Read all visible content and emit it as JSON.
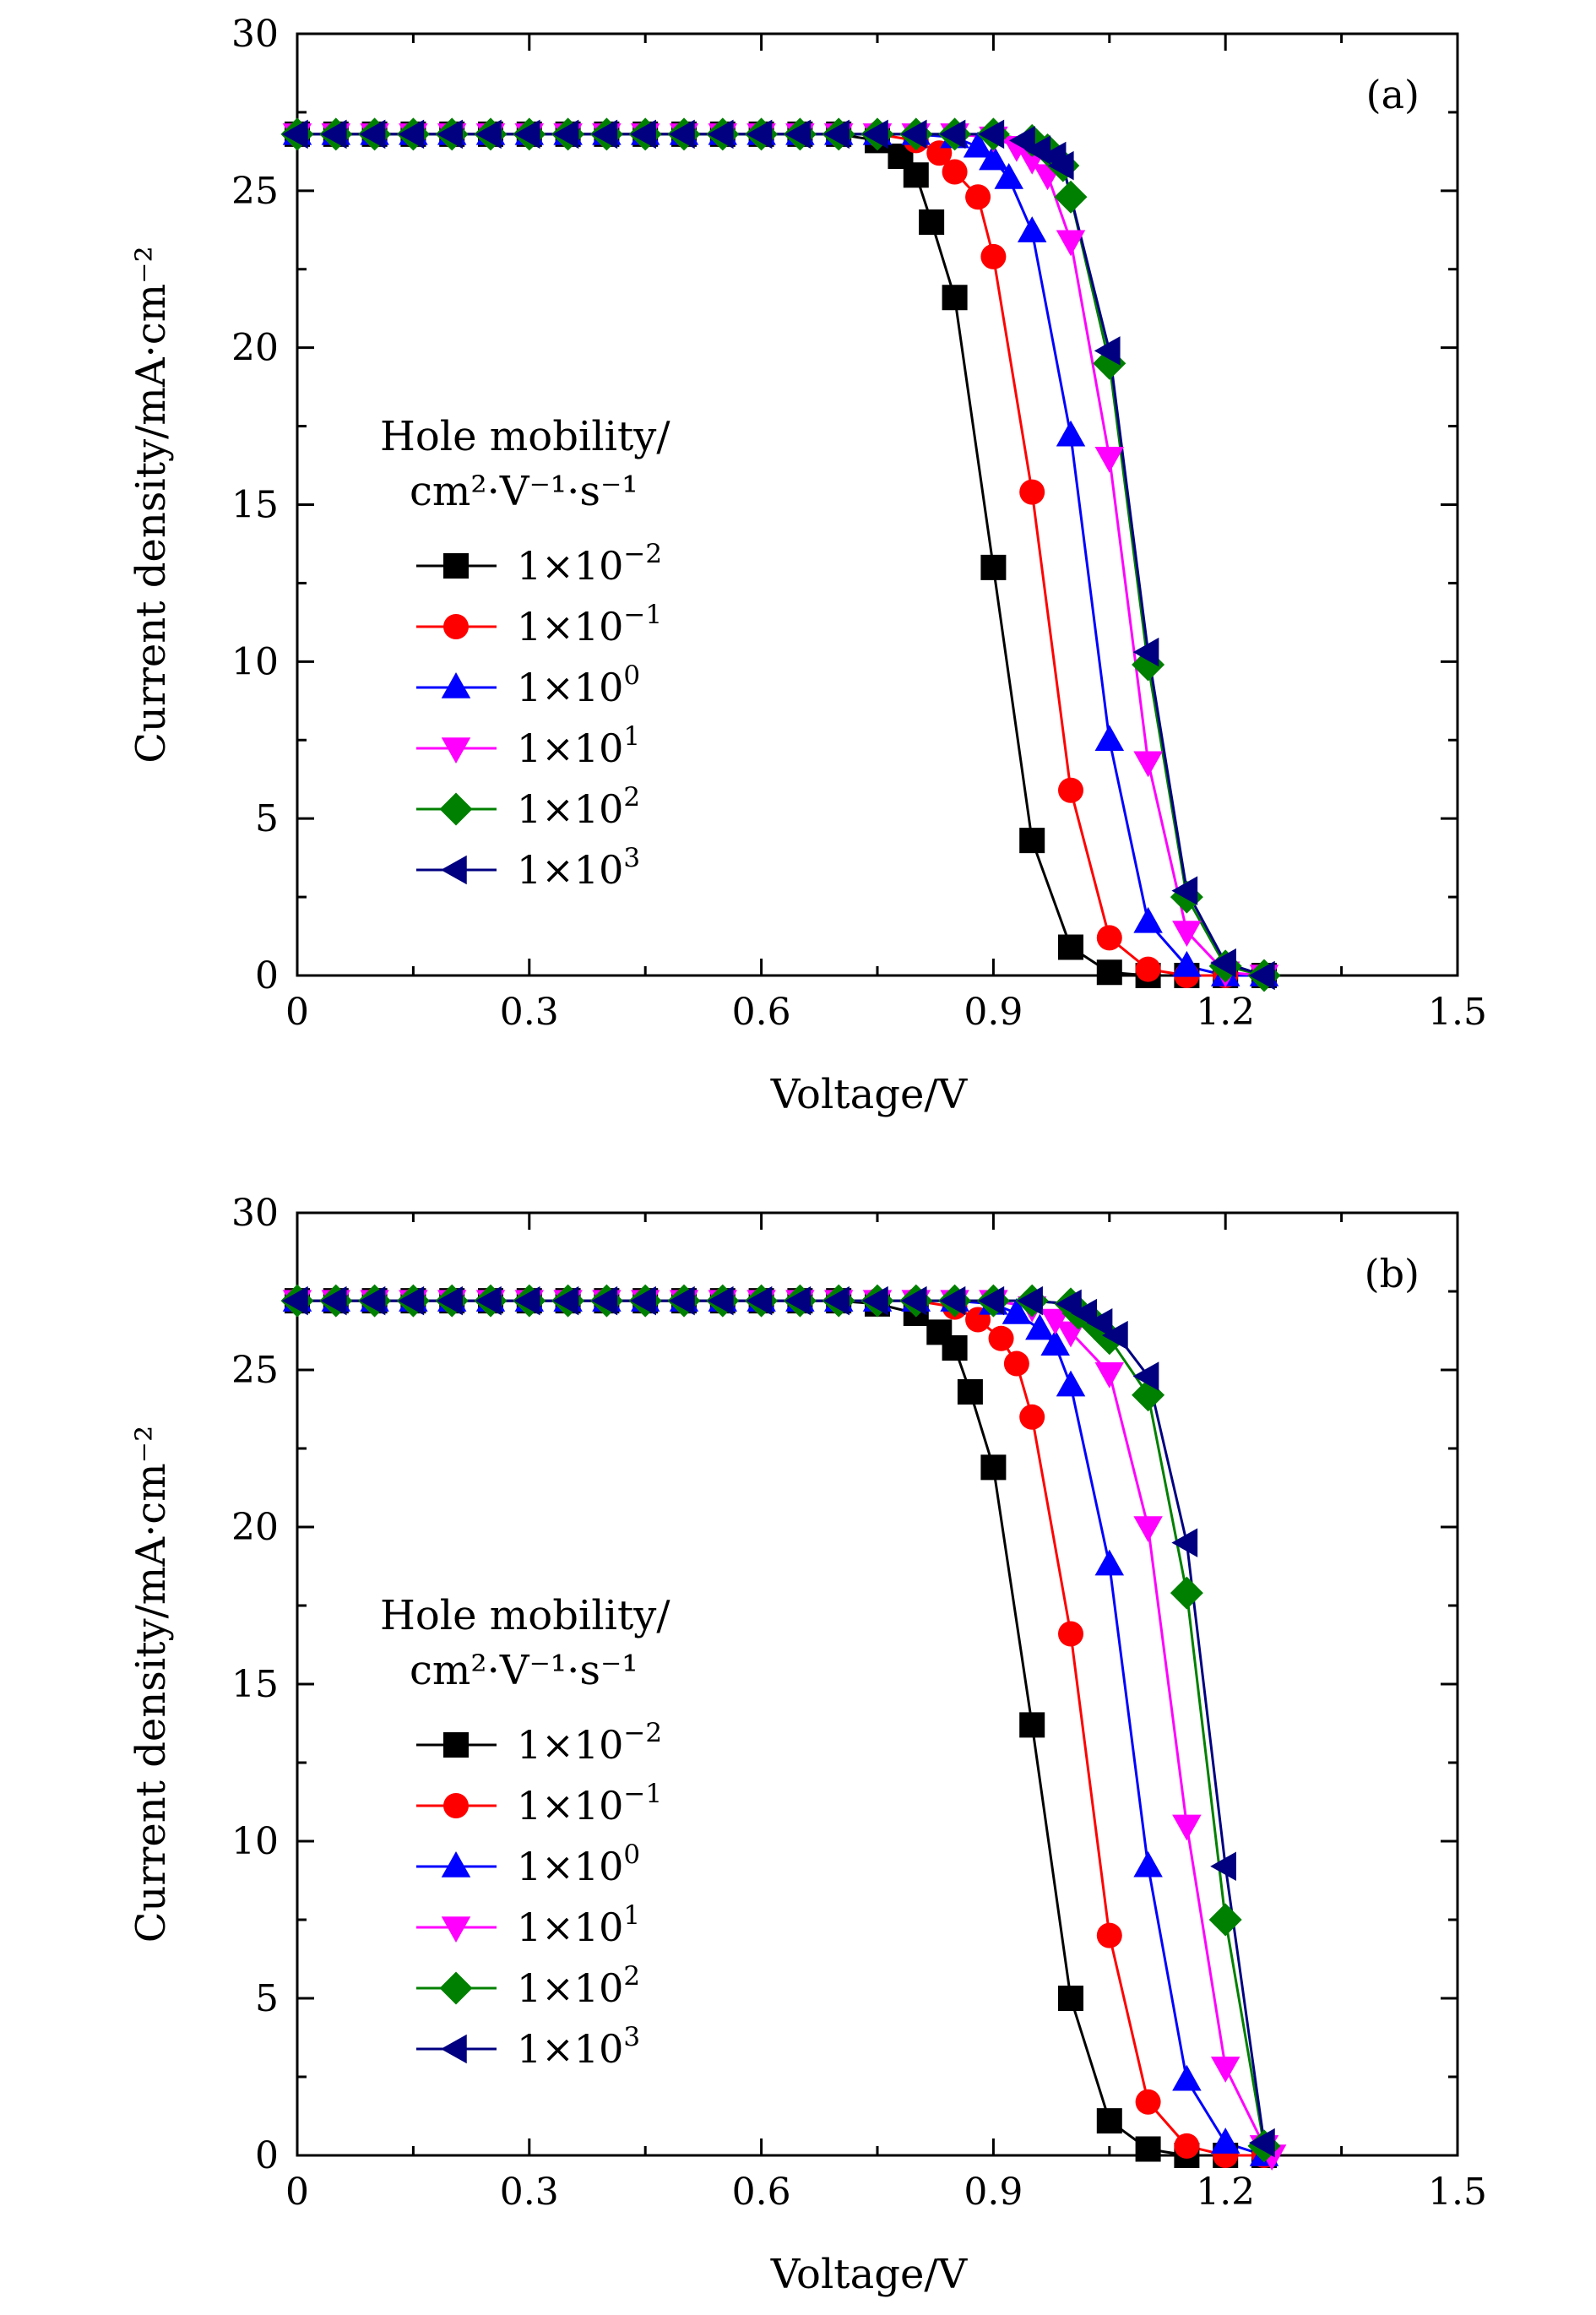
{
  "chart_data": [
    {
      "type": "line",
      "panel_label": "(a)",
      "xlabel": "Voltage/V",
      "ylabel": "Current density/mA·cm⁻²",
      "xlim": [
        0,
        1.5
      ],
      "ylim": [
        0,
        30
      ],
      "x_ticks": [
        0,
        0.3,
        0.6,
        0.9,
        1.2,
        1.5
      ],
      "x_tick_labels": [
        "0",
        "0.3",
        "0.6",
        "0.9",
        "1.2",
        "1.5"
      ],
      "y_ticks": [
        0,
        5,
        10,
        15,
        20,
        25,
        30
      ],
      "y_tick_labels": [
        "0",
        "5",
        "10",
        "15",
        "20",
        "25",
        "30"
      ],
      "legend": {
        "title_line1": "Hole mobility/",
        "title_line2": "cm²·V⁻¹·s⁻¹",
        "placement": "center-left"
      },
      "series": [
        {
          "name": "1×10⁻²",
          "mantissa": "1×10",
          "exponent": "−2",
          "color": "#000000",
          "marker": "square",
          "x": [
            0,
            0.05,
            0.1,
            0.15,
            0.2,
            0.25,
            0.3,
            0.35,
            0.4,
            0.45,
            0.5,
            0.55,
            0.6,
            0.65,
            0.7,
            0.75,
            0.78,
            0.8,
            0.82,
            0.85,
            0.9,
            0.95,
            1.0,
            1.05,
            1.1,
            1.15,
            1.2,
            1.25
          ],
          "y": [
            26.8,
            26.8,
            26.8,
            26.8,
            26.8,
            26.8,
            26.8,
            26.8,
            26.8,
            26.8,
            26.8,
            26.8,
            26.8,
            26.8,
            26.8,
            26.6,
            26.1,
            25.5,
            24.0,
            21.6,
            13.0,
            4.3,
            0.9,
            0.1,
            0.0,
            0.0,
            0.0,
            0.0
          ]
        },
        {
          "name": "1×10⁻¹",
          "mantissa": "1×10",
          "exponent": "−1",
          "color": "#ff0000",
          "marker": "circle",
          "x": [
            0,
            0.05,
            0.1,
            0.15,
            0.2,
            0.25,
            0.3,
            0.35,
            0.4,
            0.45,
            0.5,
            0.55,
            0.6,
            0.65,
            0.7,
            0.75,
            0.8,
            0.83,
            0.85,
            0.88,
            0.9,
            0.95,
            1.0,
            1.05,
            1.1,
            1.15,
            1.2,
            1.25
          ],
          "y": [
            26.8,
            26.8,
            26.8,
            26.8,
            26.8,
            26.8,
            26.8,
            26.8,
            26.8,
            26.8,
            26.8,
            26.8,
            26.8,
            26.8,
            26.8,
            26.8,
            26.6,
            26.2,
            25.6,
            24.8,
            22.9,
            15.4,
            5.9,
            1.2,
            0.2,
            0.0,
            0.0,
            0.0
          ]
        },
        {
          "name": "1×10⁰",
          "mantissa": "1×10",
          "exponent": "0",
          "color": "#0000ff",
          "marker": "triangle-up",
          "x": [
            0,
            0.05,
            0.1,
            0.15,
            0.2,
            0.25,
            0.3,
            0.35,
            0.4,
            0.45,
            0.5,
            0.55,
            0.6,
            0.65,
            0.7,
            0.75,
            0.8,
            0.85,
            0.88,
            0.9,
            0.92,
            0.95,
            1.0,
            1.05,
            1.1,
            1.15,
            1.2,
            1.25
          ],
          "y": [
            26.8,
            26.8,
            26.8,
            26.8,
            26.8,
            26.8,
            26.8,
            26.8,
            26.8,
            26.8,
            26.8,
            26.8,
            26.8,
            26.8,
            26.8,
            26.8,
            26.8,
            26.7,
            26.4,
            26.0,
            25.4,
            23.7,
            17.2,
            7.5,
            1.7,
            0.3,
            0.0,
            0.0
          ]
        },
        {
          "name": "1×10¹",
          "mantissa": "1×10",
          "exponent": "1",
          "color": "#ff00ff",
          "marker": "triangle-down",
          "x": [
            0,
            0.05,
            0.1,
            0.15,
            0.2,
            0.25,
            0.3,
            0.35,
            0.4,
            0.45,
            0.5,
            0.55,
            0.6,
            0.65,
            0.7,
            0.75,
            0.8,
            0.85,
            0.9,
            0.93,
            0.95,
            0.97,
            1.0,
            1.05,
            1.1,
            1.15,
            1.2,
            1.25
          ],
          "y": [
            26.8,
            26.8,
            26.8,
            26.8,
            26.8,
            26.8,
            26.8,
            26.8,
            26.8,
            26.8,
            26.8,
            26.8,
            26.8,
            26.8,
            26.8,
            26.8,
            26.8,
            26.8,
            26.7,
            26.4,
            26.0,
            25.5,
            23.4,
            16.5,
            6.8,
            1.4,
            0.1,
            0.0
          ]
        },
        {
          "name": "1×10²",
          "mantissa": "1×10",
          "exponent": "2",
          "color": "#008000",
          "marker": "diamond",
          "x": [
            0,
            0.05,
            0.1,
            0.15,
            0.2,
            0.25,
            0.3,
            0.35,
            0.4,
            0.45,
            0.5,
            0.55,
            0.6,
            0.65,
            0.7,
            0.75,
            0.8,
            0.85,
            0.9,
            0.95,
            0.97,
            0.99,
            1.0,
            1.05,
            1.1,
            1.15,
            1.2,
            1.25
          ],
          "y": [
            26.8,
            26.8,
            26.8,
            26.8,
            26.8,
            26.8,
            26.8,
            26.8,
            26.8,
            26.8,
            26.8,
            26.8,
            26.8,
            26.8,
            26.8,
            26.8,
            26.8,
            26.8,
            26.8,
            26.6,
            26.3,
            25.8,
            24.8,
            19.5,
            9.9,
            2.5,
            0.3,
            0.0
          ]
        },
        {
          "name": "1×10³",
          "mantissa": "1×10",
          "exponent": "3",
          "color": "#000080",
          "marker": "triangle-left",
          "x": [
            0,
            0.05,
            0.1,
            0.15,
            0.2,
            0.25,
            0.3,
            0.35,
            0.4,
            0.45,
            0.5,
            0.55,
            0.6,
            0.65,
            0.7,
            0.75,
            0.8,
            0.85,
            0.9,
            0.94,
            0.96,
            0.98,
            0.99,
            1.05,
            1.1,
            1.15,
            1.2,
            1.25
          ],
          "y": [
            26.8,
            26.8,
            26.8,
            26.8,
            26.8,
            26.8,
            26.8,
            26.8,
            26.8,
            26.8,
            26.8,
            26.8,
            26.8,
            26.8,
            26.8,
            26.8,
            26.8,
            26.8,
            26.8,
            26.6,
            26.3,
            26.1,
            25.8,
            19.9,
            10.3,
            2.7,
            0.4,
            0.0
          ]
        }
      ]
    },
    {
      "type": "line",
      "panel_label": "(b)",
      "xlabel": "Voltage/V",
      "ylabel": "Current density/mA·cm⁻²",
      "xlim": [
        0,
        1.5
      ],
      "ylim": [
        0,
        30
      ],
      "x_ticks": [
        0,
        0.3,
        0.6,
        0.9,
        1.2,
        1.5
      ],
      "x_tick_labels": [
        "0",
        "0.3",
        "0.6",
        "0.9",
        "1.2",
        "1.5"
      ],
      "y_ticks": [
        0,
        5,
        10,
        15,
        20,
        25,
        30
      ],
      "y_tick_labels": [
        "0",
        "5",
        "10",
        "15",
        "20",
        "25",
        "30"
      ],
      "legend": {
        "title_line1": "Hole mobility/",
        "title_line2": "cm²·V⁻¹·s⁻¹",
        "placement": "center-left"
      },
      "series": [
        {
          "name": "1×10⁻²",
          "mantissa": "1×10",
          "exponent": "−2",
          "color": "#000000",
          "marker": "square",
          "x": [
            0,
            0.05,
            0.1,
            0.15,
            0.2,
            0.25,
            0.3,
            0.35,
            0.4,
            0.45,
            0.5,
            0.55,
            0.6,
            0.65,
            0.7,
            0.75,
            0.8,
            0.83,
            0.85,
            0.87,
            0.9,
            0.95,
            1.0,
            1.05,
            1.1,
            1.15,
            1.2,
            1.25
          ],
          "y": [
            27.2,
            27.2,
            27.2,
            27.2,
            27.2,
            27.2,
            27.2,
            27.2,
            27.2,
            27.2,
            27.2,
            27.2,
            27.2,
            27.2,
            27.2,
            27.1,
            26.8,
            26.2,
            25.7,
            24.3,
            21.9,
            13.7,
            5.0,
            1.1,
            0.2,
            0.0,
            0.0,
            0.0
          ]
        },
        {
          "name": "1×10⁻¹",
          "mantissa": "1×10",
          "exponent": "−1",
          "color": "#ff0000",
          "marker": "circle",
          "x": [
            0,
            0.05,
            0.1,
            0.15,
            0.2,
            0.25,
            0.3,
            0.35,
            0.4,
            0.45,
            0.5,
            0.55,
            0.6,
            0.65,
            0.7,
            0.75,
            0.8,
            0.85,
            0.88,
            0.91,
            0.93,
            0.95,
            1.0,
            1.05,
            1.1,
            1.15,
            1.2,
            1.25
          ],
          "y": [
            27.2,
            27.2,
            27.2,
            27.2,
            27.2,
            27.2,
            27.2,
            27.2,
            27.2,
            27.2,
            27.2,
            27.2,
            27.2,
            27.2,
            27.2,
            27.2,
            27.2,
            27.0,
            26.6,
            26.0,
            25.2,
            23.5,
            16.6,
            7.0,
            1.7,
            0.3,
            0.0,
            0.0
          ]
        },
        {
          "name": "1×10⁰",
          "mantissa": "1×10",
          "exponent": "0",
          "color": "#0000ff",
          "marker": "triangle-up",
          "x": [
            0,
            0.05,
            0.1,
            0.15,
            0.2,
            0.25,
            0.3,
            0.35,
            0.4,
            0.45,
            0.5,
            0.55,
            0.6,
            0.65,
            0.7,
            0.75,
            0.8,
            0.85,
            0.9,
            0.93,
            0.96,
            0.98,
            1.0,
            1.05,
            1.1,
            1.15,
            1.2,
            1.25
          ],
          "y": [
            27.2,
            27.2,
            27.2,
            27.2,
            27.2,
            27.2,
            27.2,
            27.2,
            27.2,
            27.2,
            27.2,
            27.2,
            27.2,
            27.2,
            27.2,
            27.2,
            27.2,
            27.2,
            27.1,
            26.8,
            26.3,
            25.8,
            24.5,
            18.8,
            9.2,
            2.4,
            0.4,
            0.0
          ]
        },
        {
          "name": "1×10¹",
          "mantissa": "1×10",
          "exponent": "1",
          "color": "#ff00ff",
          "marker": "triangle-down",
          "x": [
            0,
            0.05,
            0.1,
            0.15,
            0.2,
            0.25,
            0.3,
            0.35,
            0.4,
            0.45,
            0.5,
            0.55,
            0.6,
            0.65,
            0.7,
            0.75,
            0.8,
            0.85,
            0.9,
            0.95,
            0.98,
            1.0,
            1.05,
            1.1,
            1.15,
            1.2,
            1.25,
            1.26
          ],
          "y": [
            27.2,
            27.2,
            27.2,
            27.2,
            27.2,
            27.2,
            27.2,
            27.2,
            27.2,
            27.2,
            27.2,
            27.2,
            27.2,
            27.2,
            27.2,
            27.2,
            27.2,
            27.2,
            27.2,
            27.0,
            26.6,
            26.2,
            24.9,
            20.0,
            10.5,
            2.8,
            0.3,
            0.0
          ]
        },
        {
          "name": "1×10²",
          "mantissa": "1×10",
          "exponent": "2",
          "color": "#008000",
          "marker": "diamond",
          "x": [
            0,
            0.05,
            0.1,
            0.15,
            0.2,
            0.25,
            0.3,
            0.35,
            0.4,
            0.45,
            0.5,
            0.55,
            0.6,
            0.65,
            0.7,
            0.75,
            0.8,
            0.85,
            0.9,
            0.95,
            1.0,
            1.01,
            1.03,
            1.05,
            1.1,
            1.15,
            1.2,
            1.25
          ],
          "y": [
            27.2,
            27.2,
            27.2,
            27.2,
            27.2,
            27.2,
            27.2,
            27.2,
            27.2,
            27.2,
            27.2,
            27.2,
            27.2,
            27.2,
            27.2,
            27.2,
            27.2,
            27.2,
            27.2,
            27.2,
            27.1,
            26.8,
            26.5,
            26.0,
            24.2,
            17.9,
            7.5,
            0.3
          ]
        },
        {
          "name": "1×10³",
          "mantissa": "1×10",
          "exponent": "3",
          "color": "#000080",
          "marker": "triangle-left",
          "x": [
            0,
            0.05,
            0.1,
            0.15,
            0.2,
            0.25,
            0.3,
            0.35,
            0.4,
            0.45,
            0.5,
            0.55,
            0.6,
            0.65,
            0.7,
            0.75,
            0.8,
            0.85,
            0.9,
            0.95,
            1.0,
            1.02,
            1.04,
            1.06,
            1.1,
            1.15,
            1.2,
            1.25
          ],
          "y": [
            27.2,
            27.2,
            27.2,
            27.2,
            27.2,
            27.2,
            27.2,
            27.2,
            27.2,
            27.2,
            27.2,
            27.2,
            27.2,
            27.2,
            27.2,
            27.2,
            27.2,
            27.2,
            27.2,
            27.2,
            27.1,
            26.8,
            26.5,
            26.1,
            24.8,
            19.5,
            9.2,
            0.4
          ]
        }
      ]
    }
  ]
}
